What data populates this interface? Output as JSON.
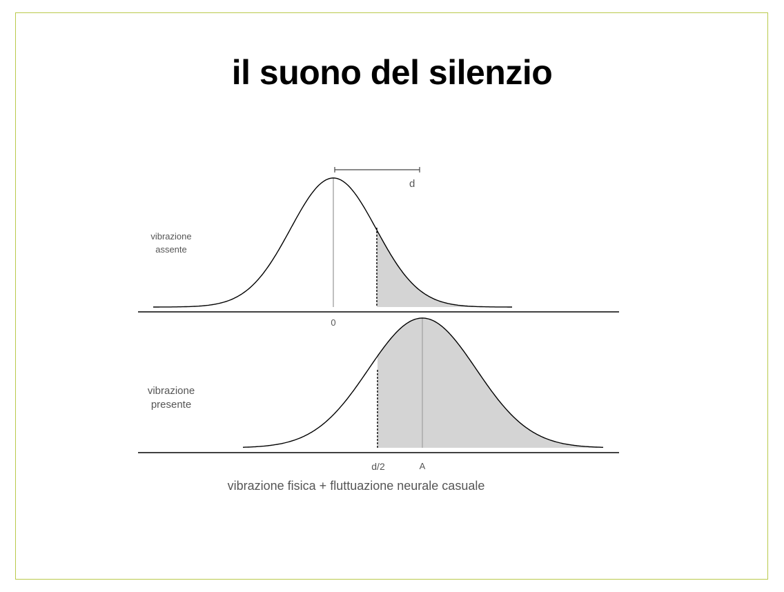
{
  "slide": {
    "title": "il suono del silenzio"
  },
  "diagram": {
    "top_curve_label": [
      "vibrazione",
      "assente"
    ],
    "bottom_curve_label": [
      "vibrazione",
      "presente"
    ],
    "distance_label": "d",
    "zero_label": "0",
    "threshold_label": "d/2",
    "signal_label": "A",
    "caption": "vibrazione fisica + fluttuazione neurale casuale",
    "colors": {
      "frame": "#b9c94a",
      "shade": "#d4d4d4",
      "curve": "#000000",
      "center_line": "#aaaaaa"
    }
  }
}
